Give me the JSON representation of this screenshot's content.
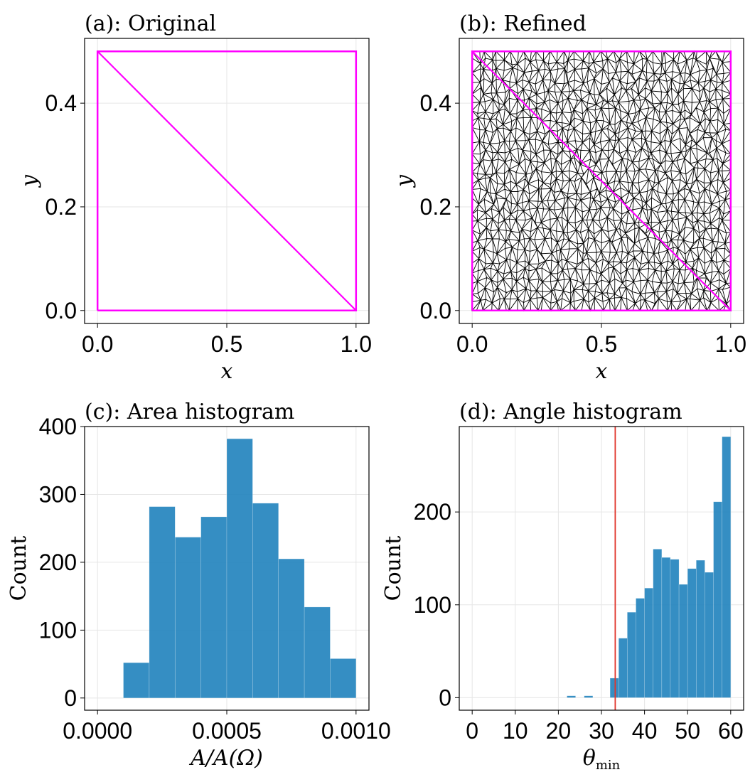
{
  "chart_data": [
    {
      "type": "line",
      "title": "(a): Original",
      "xlabel": "x",
      "ylabel": "y",
      "xlim": [
        -0.05,
        1.05
      ],
      "ylim": [
        -0.025,
        0.525
      ],
      "xticks": [
        "0.0",
        "0.5",
        "1.0"
      ],
      "xtick_values": [
        0,
        0.5,
        1.0
      ],
      "yticks": [
        "0.0",
        "0.2",
        "0.4"
      ],
      "ytick_values": [
        0,
        0.2,
        0.4
      ],
      "grid": true,
      "boundary": [
        [
          0,
          0
        ],
        [
          1,
          0
        ],
        [
          1,
          0.5
        ],
        [
          0,
          0.5
        ],
        [
          0,
          0
        ]
      ],
      "diagonal": [
        [
          0,
          0.5
        ],
        [
          1,
          0
        ]
      ],
      "boundary_color": "#ff00ff"
    },
    {
      "type": "line",
      "title": "(b): Refined",
      "xlabel": "x",
      "ylabel": "y",
      "xlim": [
        -0.05,
        1.05
      ],
      "ylim": [
        -0.025,
        0.525
      ],
      "xticks": [
        "0.0",
        "0.5",
        "1.0"
      ],
      "xtick_values": [
        0,
        0.5,
        1.0
      ],
      "yticks": [
        "0.0",
        "0.2",
        "0.4"
      ],
      "ytick_values": [
        0,
        0.2,
        0.4
      ],
      "grid": true,
      "boundary": [
        [
          0,
          0
        ],
        [
          1,
          0
        ],
        [
          1,
          0.5
        ],
        [
          0,
          0.5
        ],
        [
          0,
          0
        ]
      ],
      "diagonal": [
        [
          0,
          0.5
        ],
        [
          1,
          0
        ]
      ],
      "boundary_color": "#ff00ff",
      "mesh_color": "#000000",
      "mesh_triangle_count": 2000
    },
    {
      "type": "bar",
      "title": "(c): Area histogram",
      "xlabel": "A/A(Ω)",
      "ylabel": "Count",
      "xlim": [
        -5e-05,
        0.00105
      ],
      "ylim": [
        -18,
        400
      ],
      "xticks": [
        "0.0000",
        "0.0005",
        "0.0010"
      ],
      "xtick_values": [
        0,
        0.0005,
        0.001
      ],
      "yticks": [
        "0",
        "100",
        "200",
        "300",
        "400"
      ],
      "ytick_values": [
        0,
        100,
        200,
        300,
        400
      ],
      "grid": true,
      "bar_color": "#1f82bd",
      "bins": [
        {
          "x0": 0.0001,
          "x1": 0.0002,
          "count": 52
        },
        {
          "x0": 0.0002,
          "x1": 0.0003,
          "count": 282
        },
        {
          "x0": 0.0003,
          "x1": 0.0004,
          "count": 237
        },
        {
          "x0": 0.0004,
          "x1": 0.0005,
          "count": 267
        },
        {
          "x0": 0.0005,
          "x1": 0.0006,
          "count": 382
        },
        {
          "x0": 0.0006,
          "x1": 0.0007,
          "count": 287
        },
        {
          "x0": 0.0007,
          "x1": 0.0008,
          "count": 205
        },
        {
          "x0": 0.0008,
          "x1": 0.0009,
          "count": 134
        },
        {
          "x0": 0.0009,
          "x1": 0.001,
          "count": 58
        }
      ]
    },
    {
      "type": "bar",
      "title": "(d): Angle histogram",
      "xlabel": "θ",
      "xlabel_subscript": "min",
      "ylabel": "Count",
      "xlim": [
        -3,
        63
      ],
      "ylim": [
        -13.5,
        292
      ],
      "xticks": [
        "0",
        "10",
        "20",
        "30",
        "40",
        "50",
        "60"
      ],
      "xtick_values": [
        0,
        10,
        20,
        30,
        40,
        50,
        60
      ],
      "yticks": [
        "0",
        "100",
        "200"
      ],
      "ytick_values": [
        0,
        100,
        200
      ],
      "grid": true,
      "bar_color": "#1f82bd",
      "vline": {
        "x": 33.2,
        "color": "#e0352b"
      },
      "bins": [
        {
          "x0": 22,
          "x1": 24,
          "count": 2
        },
        {
          "x0": 26,
          "x1": 28,
          "count": 2
        },
        {
          "x0": 32,
          "x1": 34,
          "count": 21
        },
        {
          "x0": 34,
          "x1": 36,
          "count": 64
        },
        {
          "x0": 36,
          "x1": 38,
          "count": 92
        },
        {
          "x0": 38,
          "x1": 40,
          "count": 107
        },
        {
          "x0": 40,
          "x1": 42,
          "count": 118
        },
        {
          "x0": 42,
          "x1": 44,
          "count": 160
        },
        {
          "x0": 44,
          "x1": 46,
          "count": 151
        },
        {
          "x0": 46,
          "x1": 48,
          "count": 149
        },
        {
          "x0": 48,
          "x1": 50,
          "count": 122
        },
        {
          "x0": 50,
          "x1": 52,
          "count": 139
        },
        {
          "x0": 52,
          "x1": 54,
          "count": 148
        },
        {
          "x0": 54,
          "x1": 56,
          "count": 135
        },
        {
          "x0": 56,
          "x1": 58,
          "count": 211
        },
        {
          "x0": 58,
          "x1": 60,
          "count": 281
        }
      ]
    }
  ]
}
